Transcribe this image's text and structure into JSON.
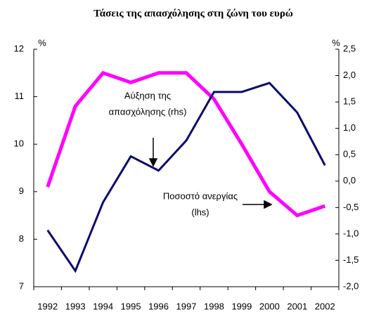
{
  "chart_data": {
    "type": "line",
    "title": "Τάσεις της απασχόλησης στη ζώνη του ευρώ",
    "ylabel": "%",
    "y2label": "%",
    "categories": [
      "1992",
      "1993",
      "1994",
      "1995",
      "1996",
      "1997",
      "1998",
      "1999",
      "2000",
      "2001",
      "2002"
    ],
    "series": [
      {
        "color": "#ff00ff",
        "values": [
          9.1,
          10.8,
          11.5,
          11.3,
          11.5,
          11.5,
          10.95,
          10.0,
          9.0,
          8.5,
          8.7
        ]
      },
      {
        "color": "#0a0a6e",
        "axis": "y2",
        "values": [
          -0.93,
          -1.7,
          -0.4,
          0.47,
          0.2,
          0.77,
          1.69,
          1.69,
          1.86,
          1.3,
          0.3
        ]
      }
    ],
    "annotations": [
      [
        "Αύξηση της",
        "απασχόλησης (rhs)"
      ],
      [
        "Ποσοστό ανεργίας",
        "(lhs)"
      ]
    ],
    "ylim": [
      7,
      12
    ],
    "yticks": [
      7,
      8,
      9,
      10,
      11,
      12
    ],
    "y2lim": [
      -2.0,
      2.5
    ],
    "y2ticks": [
      {
        "value": -2.0,
        "label": "-2,0"
      },
      {
        "value": -1.5,
        "label": "-1,5"
      },
      {
        "value": -1.0,
        "label": "-1,0"
      },
      {
        "value": -0.5,
        "label": "-0,5"
      },
      {
        "value": 0.0,
        "label": "0,0"
      },
      {
        "value": 0.5,
        "label": "0,5"
      },
      {
        "value": 1.0,
        "label": "1,0"
      },
      {
        "value": 1.5,
        "label": "1,5"
      },
      {
        "value": 2.0,
        "label": "2,0"
      },
      {
        "value": 2.5,
        "label": "2,5"
      }
    ]
  }
}
